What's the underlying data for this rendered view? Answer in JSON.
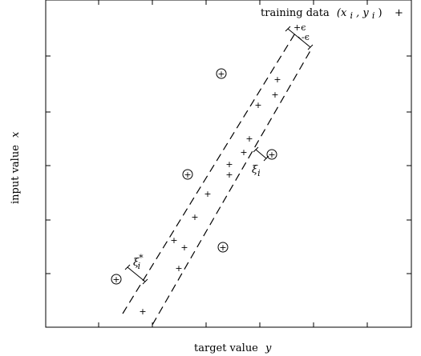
{
  "figure": {
    "legend_label": "training data",
    "legend_math": "(x",
    "legend_sub_i": "i",
    "legend_comma": ", y",
    "legend_sub_i2": "i",
    "legend_paren": ")",
    "x_axis_label": "target value",
    "x_axis_var": "y",
    "y_axis_label": "input value",
    "y_axis_var": "x",
    "plus_epsilon": "+ϵ",
    "minus_epsilon": "-ϵ",
    "xi_label": "ξ",
    "xi_sub": "i",
    "xi_star_label": "ξ",
    "xi_star_sub": "i",
    "xi_star_sup": "*"
  },
  "chart_data": {
    "type": "scatter",
    "xlabel": "target value y",
    "ylabel": "input value x",
    "legend": [
      "training data (x_i, y_i)"
    ],
    "legend_position": "top-right",
    "series": [
      {
        "name": "training data (x_i, y_i)",
        "points": [
          [
            178,
            389
          ],
          [
            223,
            335
          ],
          [
            230,
            309
          ],
          [
            217,
            300
          ],
          [
            243,
            271
          ],
          [
            259,
            242
          ],
          [
            286,
            218
          ],
          [
            286,
            205
          ],
          [
            304,
            190
          ],
          [
            311,
            173
          ],
          [
            322,
            131
          ],
          [
            343,
            118
          ],
          [
            346,
            99
          ],
          [
            276,
            92
          ],
          [
            234,
            218
          ],
          [
            278,
            309
          ],
          [
            145,
            349
          ],
          [
            339,
            193
          ]
        ]
      }
    ],
    "outliers": [
      [
        276,
        92
      ],
      [
        234,
        218
      ],
      [
        278,
        309
      ],
      [
        145,
        349
      ],
      [
        339,
        193
      ]
    ]
  }
}
